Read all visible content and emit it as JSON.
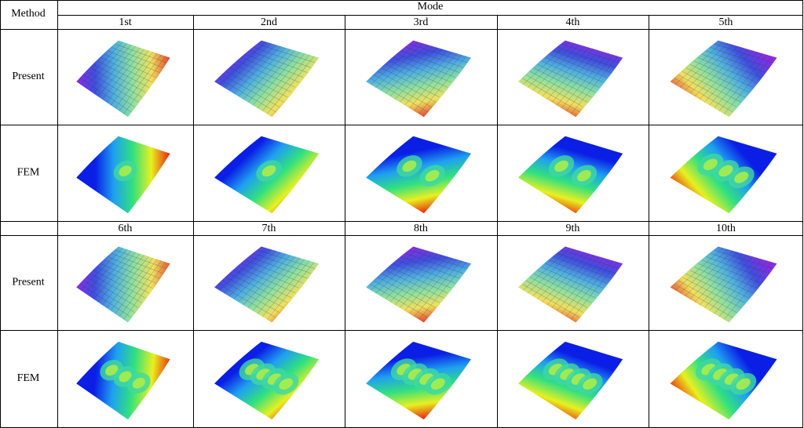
{
  "table": {
    "header": {
      "method": "Method",
      "mode": "Mode"
    },
    "blocks": [
      {
        "modes": [
          "1st",
          "2nd",
          "3rd",
          "4th",
          "5th"
        ],
        "rows": [
          "Present",
          "FEM"
        ]
      },
      {
        "modes": [
          "6th",
          "7th",
          "8th",
          "9th",
          "10th"
        ],
        "rows": [
          "Present",
          "FEM"
        ]
      }
    ]
  }
}
